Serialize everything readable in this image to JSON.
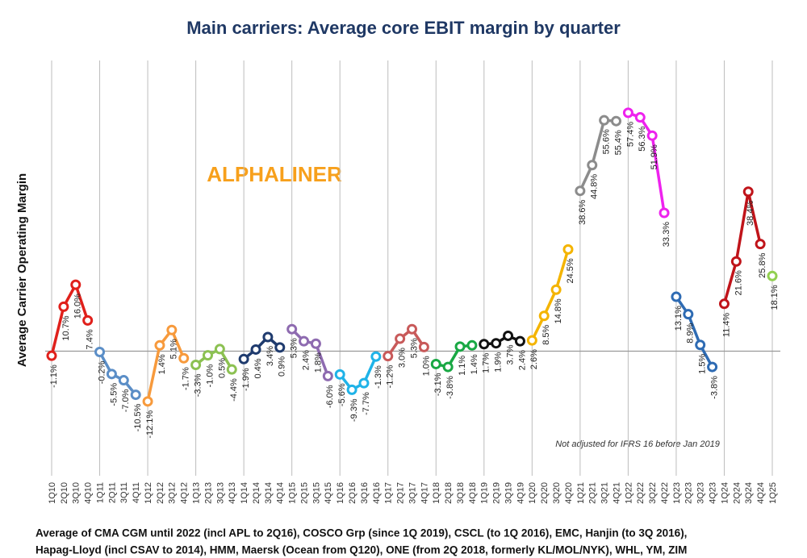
{
  "chart_data": {
    "type": "line",
    "title": "Main carriers: Average core EBIT margin by quarter",
    "y_label": "Average Carrier Operating Margin",
    "watermark": "ALPHALINER",
    "annotation": "Not adjusted for IFRS 16 before Jan 2019",
    "footnote": [
      "Average of CMA CGM until 2022 (incl APL to 2Q16), COSCO Grp (since 1Q 2019), CSCL (to 1Q 2016), EMC, Hanjin (to 3Q 2016),",
      "Hapag-Lloyd (incl CSAV to 2014), HMM, Maersk (Ocean from Q120), ONE (from 2Q 2018, formerly KL/MOL/NYK), WHL, YM, ZIM"
    ],
    "categories": [
      "1Q10",
      "2Q10",
      "3Q10",
      "4Q10",
      "1Q11",
      "2Q11",
      "3Q11",
      "4Q11",
      "1Q12",
      "2Q12",
      "3Q12",
      "4Q12",
      "1Q13",
      "2Q13",
      "3Q13",
      "4Q13",
      "1Q14",
      "2Q14",
      "3Q14",
      "4Q14",
      "1Q15",
      "2Q15",
      "3Q15",
      "4Q15",
      "1Q16",
      "2Q16",
      "3Q16",
      "4Q16",
      "1Q17",
      "2Q17",
      "3Q17",
      "4Q17",
      "1Q18",
      "2Q18",
      "3Q18",
      "4Q18",
      "1Q19",
      "2Q19",
      "3Q19",
      "4Q19",
      "1Q20",
      "2Q20",
      "3Q20",
      "4Q20",
      "1Q21",
      "2Q21",
      "3Q21",
      "4Q21",
      "1Q22",
      "2Q22",
      "3Q22",
      "4Q22",
      "1Q23",
      "2Q23",
      "3Q23",
      "4Q23",
      "1Q24",
      "2Q24",
      "3Q24",
      "4Q24",
      "1Q25"
    ],
    "values": [
      -1.1,
      10.7,
      16.0,
      7.4,
      -0.2,
      -5.5,
      -7.0,
      -10.5,
      -12.1,
      1.4,
      5.1,
      -1.7,
      -3.3,
      -1.0,
      0.5,
      -4.4,
      -1.9,
      0.4,
      3.4,
      0.9,
      5.3,
      2.4,
      1.8,
      -6.0,
      -5.6,
      -9.3,
      -7.7,
      -1.3,
      -1.2,
      3.0,
      5.3,
      1.0,
      -3.1,
      -3.8,
      1.1,
      1.4,
      1.7,
      1.9,
      3.7,
      2.4,
      2.6,
      8.5,
      14.8,
      24.5,
      38.6,
      44.8,
      55.6,
      55.4,
      57.4,
      56.3,
      51.9,
      33.3,
      13.1,
      8.9,
      1.5,
      -3.8,
      11.4,
      21.6,
      38.4,
      25.8,
      18.1
    ],
    "value_labels": [
      "-1.1%",
      "10.7%",
      "16.0%",
      "7.4%",
      "-0.2%",
      "-5.5%",
      "-7.0%",
      "-10.5%",
      "-12.1%",
      "1.4%",
      "5.1%",
      "-1.7%",
      "-3.3%",
      "-1.0%",
      "0.5%",
      "-4.4%",
      "-1.9%",
      "0.4%",
      "3.4%",
      "0.9%",
      "5.3%",
      "2.4%",
      "1.8%",
      "-6.0%",
      "-5.6%",
      "-9.3%",
      "-7.7%",
      "-1.3%",
      "-1.2%",
      "3.0%",
      "5.3%",
      "1.0%",
      "-3.1%",
      "-3.8%",
      "1.1%",
      "1.4%",
      "1.7%",
      "1.9%",
      "3.7%",
      "2.4%",
      "2.6%",
      "8.5%",
      "14.8%",
      "24.5%",
      "38.6%",
      "44.8%",
      "55.6%",
      "55.4%",
      "57.4%",
      "56.3%",
      "51.9%",
      "33.3%",
      "13.1%",
      "8.9%",
      "1.5%",
      "-3.8%",
      "11.4%",
      "21.6%",
      "38.4%",
      "25.8%",
      "18.1%"
    ],
    "colors": [
      "#e0201b",
      "#e0201b",
      "#e0201b",
      "#e0201b",
      "#5b8ec7",
      "#5b8ec7",
      "#5b8ec7",
      "#5b8ec7",
      "#f79a3c",
      "#f79a3c",
      "#f79a3c",
      "#f79a3c",
      "#8cc152",
      "#8cc152",
      "#8cc152",
      "#8cc152",
      "#1f3b6e",
      "#1f3b6e",
      "#1f3b6e",
      "#1f3b6e",
      "#8e6bb0",
      "#8e6bb0",
      "#8e6bb0",
      "#8e6bb0",
      "#1fb3e8",
      "#1fb3e8",
      "#1fb3e8",
      "#1fb3e8",
      "#c85a5a",
      "#c85a5a",
      "#c85a5a",
      "#c85a5a",
      "#19a844",
      "#19a844",
      "#19a844",
      "#19a844",
      "#111111",
      "#111111",
      "#111111",
      "#111111",
      "#f4b400",
      "#f4b400",
      "#f4b400",
      "#f4b400",
      "#8c8c8c",
      "#8c8c8c",
      "#8c8c8c",
      "#8c8c8c",
      "#ee22ee",
      "#ee22ee",
      "#ee22ee",
      "#ee22ee",
      "#2e6bb3",
      "#2e6bb3",
      "#2e6bb3",
      "#2e6bb3",
      "#c0141a",
      "#c0141a",
      "#c0141a",
      "#c0141a",
      "#92d050"
    ],
    "ylim": [
      -30,
      70
    ]
  }
}
